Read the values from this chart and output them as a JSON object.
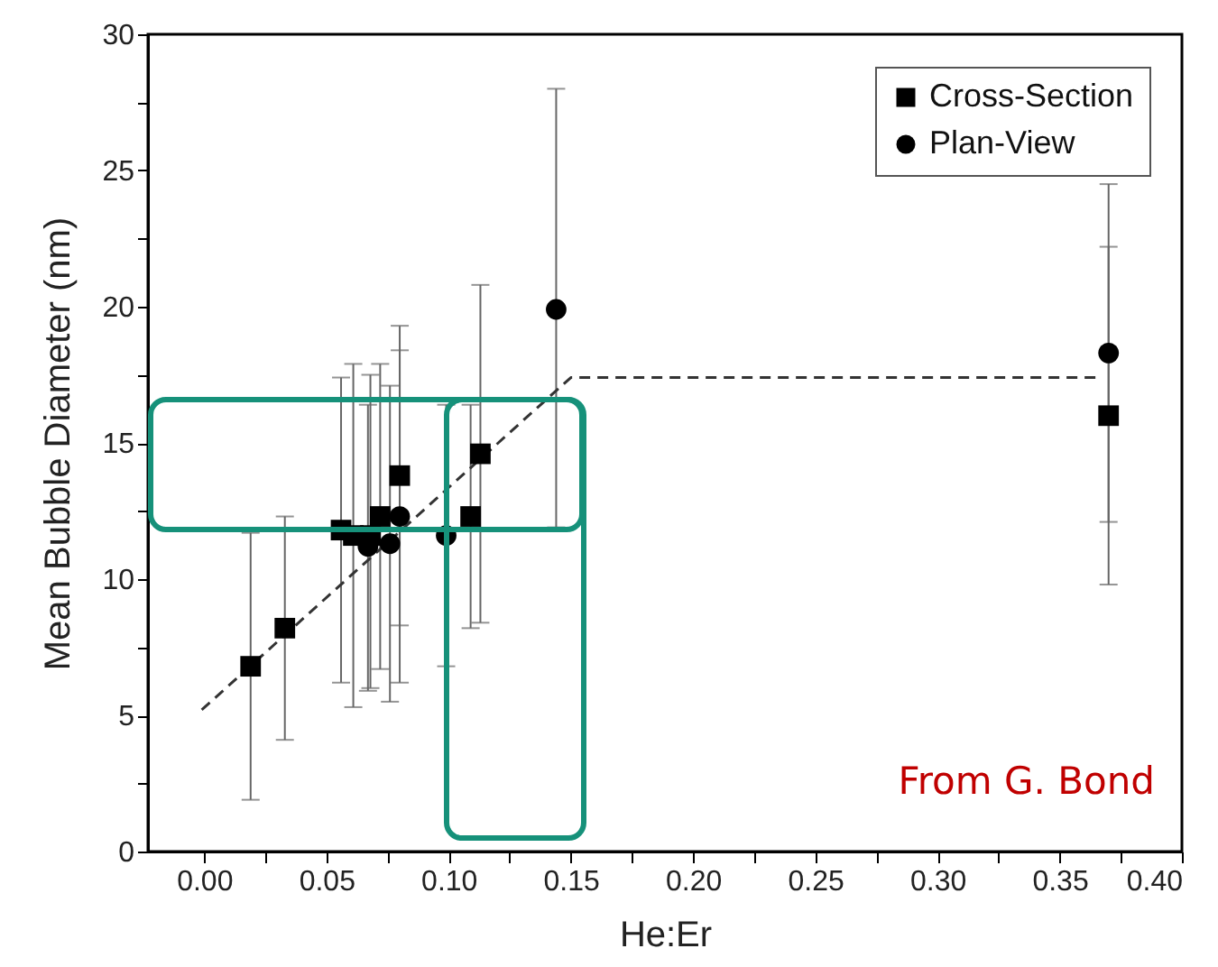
{
  "chart_data": {
    "type": "scatter",
    "xlabel": "He:Er",
    "ylabel": "Mean Bubble Diameter (nm)",
    "xlim": [
      -0.023,
      0.4
    ],
    "ylim": [
      0,
      30
    ],
    "xticks": [
      "0.00",
      {
        "value": 0.025,
        "label": null
      },
      {
        "value": 0.05,
        "label": "0.05"
      },
      {
        "value": 0.075,
        "label": null
      },
      {
        "value": 0.1,
        "label": "0.10"
      },
      {
        "value": 0.125,
        "label": null
      },
      {
        "value": 0.15,
        "label": "0.15"
      },
      {
        "value": 0.175,
        "label": null
      },
      {
        "value": 0.2,
        "label": "0.20"
      },
      {
        "value": 0.225,
        "label": null
      },
      {
        "value": 0.25,
        "label": "0.25"
      },
      {
        "value": 0.275,
        "label": null
      },
      {
        "value": 0.3,
        "label": "0.30"
      },
      {
        "value": 0.325,
        "label": null
      },
      {
        "value": 0.35,
        "label": "0.35"
      },
      {
        "value": 0.375,
        "label": null
      },
      {
        "value": 0.4,
        "label": "0.40"
      }
    ],
    "yticks": [
      0,
      {
        "value": 2.5,
        "label": null
      },
      5,
      {
        "value": 7.5,
        "label": null
      },
      10,
      {
        "value": 12.5,
        "label": null
      },
      15,
      {
        "value": 17.5,
        "label": null
      },
      20,
      {
        "value": 22.5,
        "label": null
      },
      25,
      {
        "value": 27.5,
        "label": null
      },
      30
    ],
    "legend": "top right",
    "series": [
      {
        "name": "Cross-Section",
        "type": "scatter",
        "marker": "square",
        "color": "#000000",
        "x": [
          0.019,
          0.033,
          0.056,
          0.061,
          0.068,
          0.072,
          0.08,
          0.109,
          0.113,
          0.37
        ],
        "values": [
          6.8,
          8.2,
          11.8,
          11.6,
          11.6,
          12.3,
          13.8,
          12.3,
          14.6,
          16.0
        ],
        "errors": [
          [
            1.9,
            11.7
          ],
          [
            4.1,
            12.3
          ],
          [
            6.2,
            17.4
          ],
          [
            5.3,
            17.9
          ],
          [
            6.0,
            17.5
          ],
          [
            6.7,
            17.9
          ],
          [
            8.3,
            19.3
          ],
          [
            8.2,
            16.4
          ],
          [
            8.4,
            20.8
          ],
          [
            9.8,
            22.2
          ]
        ]
      },
      {
        "name": "Plan-View",
        "type": "scatter",
        "marker": "circle",
        "color": "#000000",
        "x": [
          0.067,
          0.076,
          0.08,
          0.099,
          0.144,
          0.37
        ],
        "values": [
          11.2,
          11.3,
          12.3,
          11.6,
          19.9,
          18.3
        ],
        "errors": [
          [
            5.9,
            16.4
          ],
          [
            5.5,
            17.1
          ],
          [
            6.2,
            18.4
          ],
          [
            6.8,
            16.4
          ],
          [
            11.9,
            28.0
          ],
          [
            12.1,
            24.5
          ]
        ]
      },
      {
        "type": "line",
        "line_style": "dashed",
        "color": "#333333",
        "x": [
          -0.001,
          0.15,
          0.366
        ],
        "values": [
          5.2,
          17.4,
          17.4
        ]
      }
    ],
    "annotations": [
      "From G. Bond"
    ]
  }
}
